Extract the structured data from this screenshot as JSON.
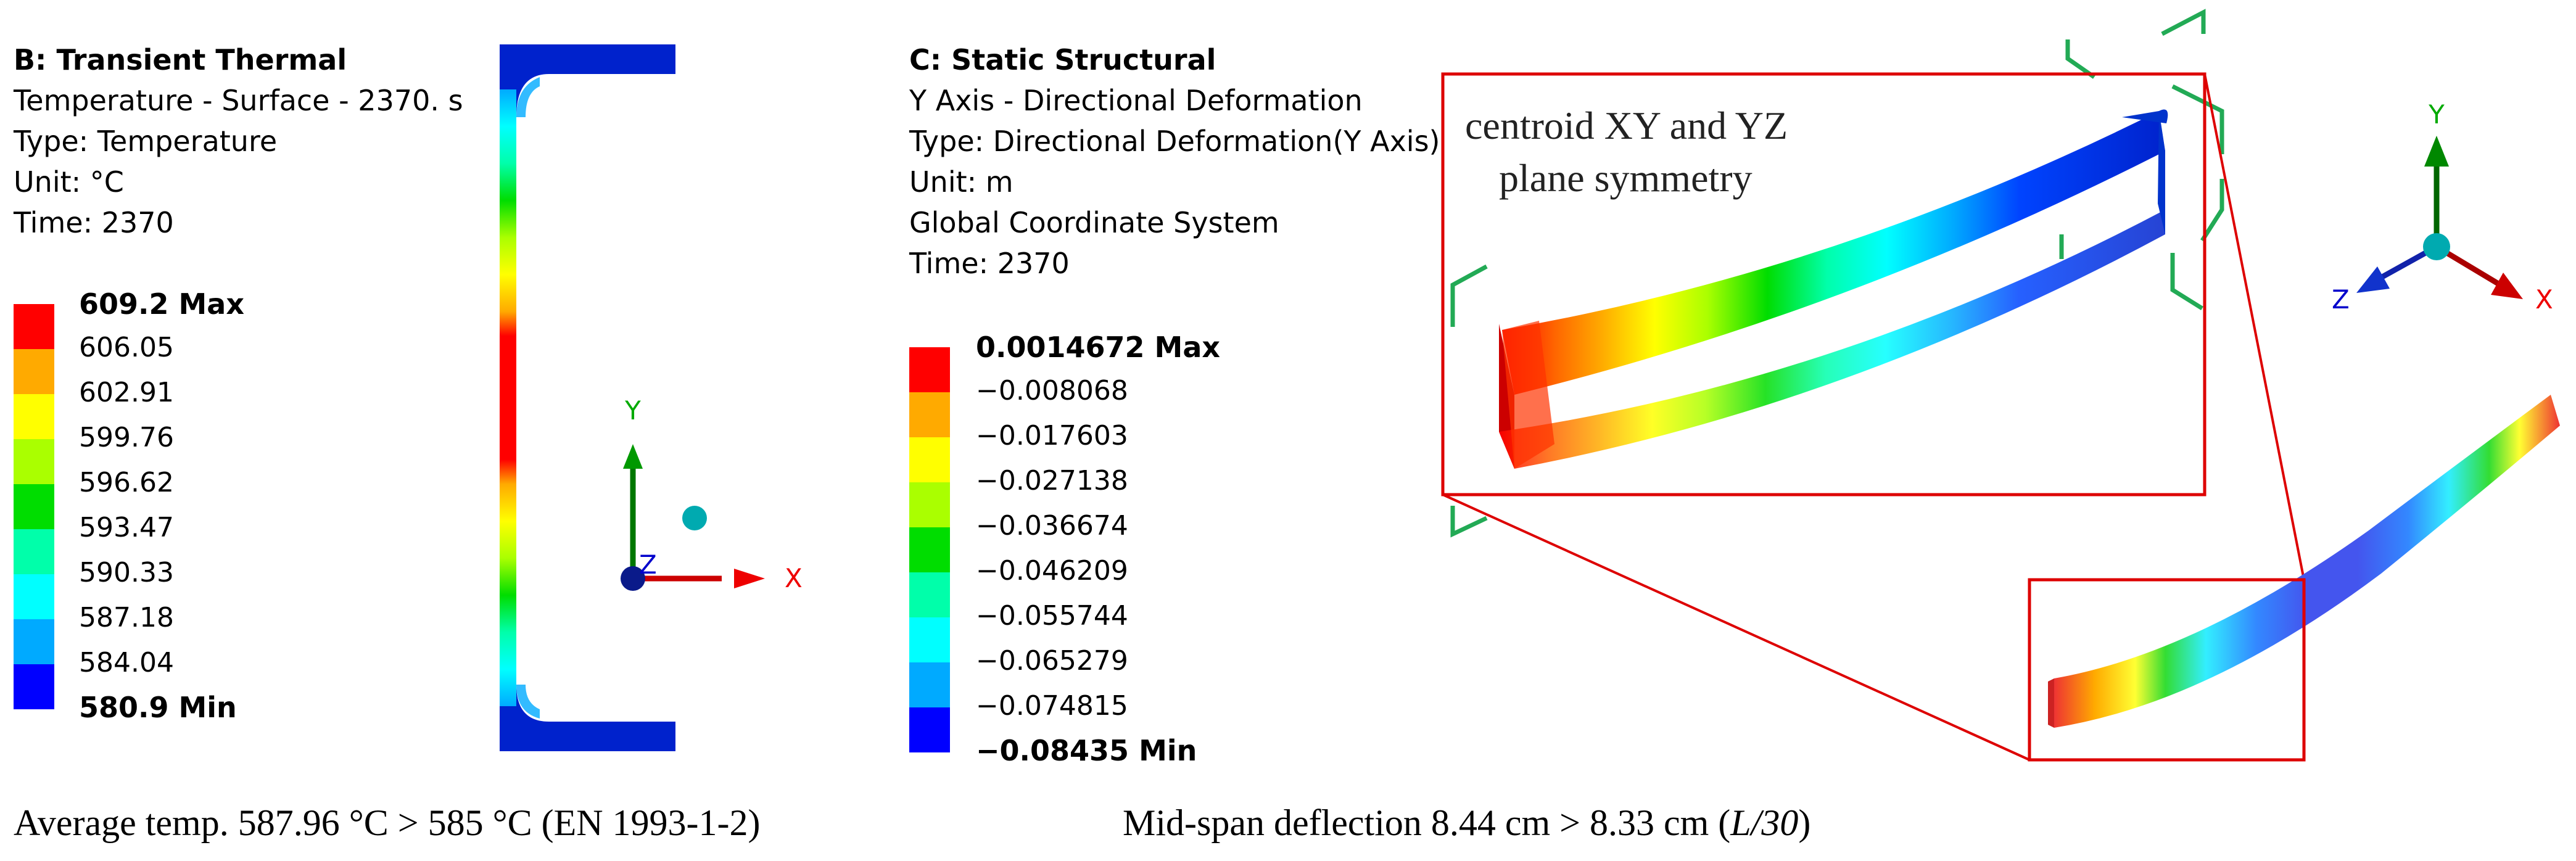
{
  "thermal": {
    "title": "B: Transient Thermal",
    "lines": [
      "Temperature - Surface - 2370. s",
      "Type: Temperature",
      "Unit: °C",
      "Time: 2370"
    ],
    "legend": {
      "max": "609.2 Max",
      "values": [
        "606.05",
        "602.91",
        "599.76",
        "596.62",
        "593.47",
        "590.33",
        "587.18",
        "584.04"
      ],
      "min": "580.9 Min",
      "colors": [
        "#ff0000",
        "#ffaa00",
        "#ffff00",
        "#aaff00",
        "#00dd00",
        "#00ffaa",
        "#00ffff",
        "#00aaff",
        "#0000ff"
      ]
    },
    "triad": {
      "y": "Y",
      "x": "X",
      "z": "Z"
    }
  },
  "structural": {
    "title": "C: Static Structural",
    "lines": [
      "Y Axis - Directional Deformation",
      "Type: Directional Deformation(Y Axis)",
      "Unit: m",
      "Global Coordinate System",
      "Time: 2370"
    ],
    "legend": {
      "max": "0.0014672 Max",
      "values": [
        "−0.008068",
        "−0.017603",
        "−0.027138",
        "−0.036674",
        "−0.046209",
        "−0.055744",
        "−0.065279",
        "−0.074815"
      ],
      "min": "−0.08435 Min",
      "colors": [
        "#ff0000",
        "#ffaa00",
        "#ffff00",
        "#aaff00",
        "#00dd00",
        "#00ffaa",
        "#00ffff",
        "#00aaff",
        "#0000ff"
      ]
    },
    "annotation": [
      "centroid XY and YZ",
      "plane symmetry"
    ],
    "triad": {
      "y": "Y",
      "x": "X",
      "z": "Z"
    }
  },
  "captions": {
    "left": "Average temp. 587.96 °C > 585 °C (EN 1993-1-2)",
    "right_main": "Mid-span deflection 8.44 cm > 8.33 cm (",
    "right_italic": "L/30",
    "right_end": ")"
  }
}
